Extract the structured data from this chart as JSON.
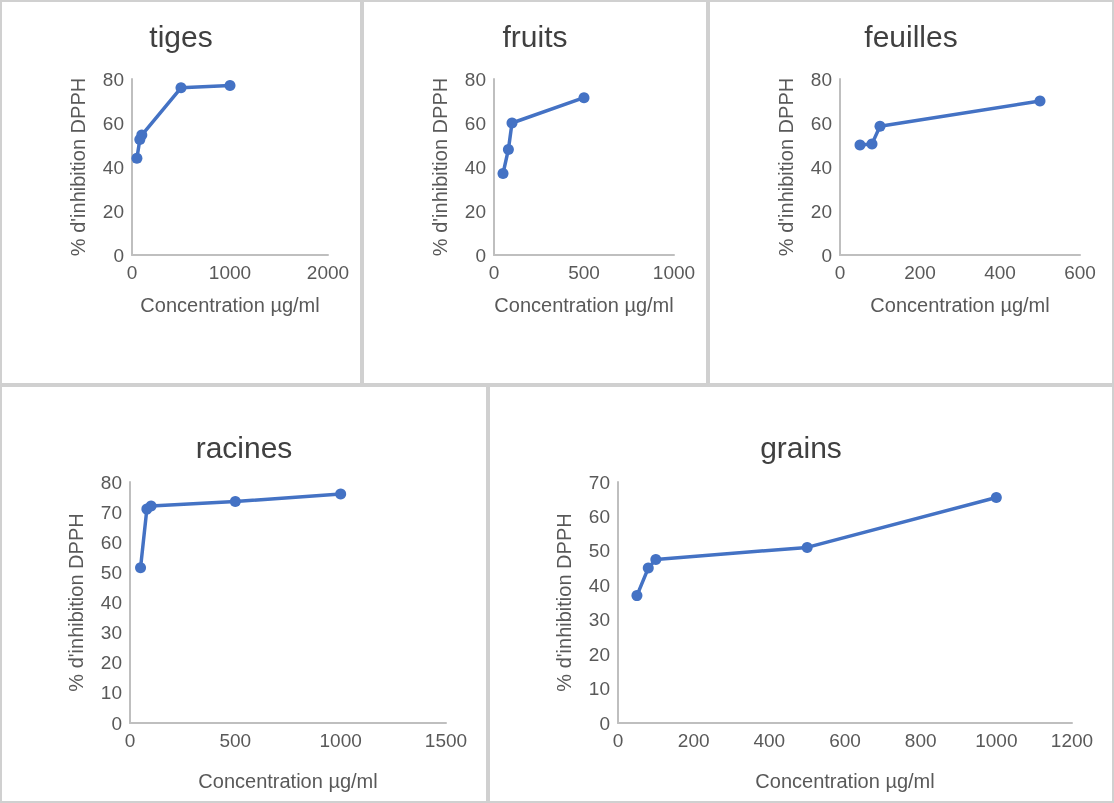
{
  "chart_data": [
    {
      "type": "line",
      "title": "tiges",
      "xlabel": "Concentration µg/ml",
      "ylabel": "% d'inhibition DPPH",
      "x": [
        50,
        80,
        100,
        500,
        1000
      ],
      "values": [
        44,
        52.5,
        54.5,
        76,
        77
      ],
      "color": "#4472c4",
      "marker": "circle",
      "xlim": [
        0,
        2000
      ],
      "xticks": [
        0,
        1000,
        2000
      ],
      "ylim": [
        0,
        80
      ],
      "yticks": [
        0,
        20,
        40,
        60,
        80
      ]
    },
    {
      "type": "line",
      "title": "fruits",
      "xlabel": "Concentration µg/ml",
      "ylabel": "% d'inhibition DPPH",
      "x": [
        50,
        80,
        100,
        500
      ],
      "values": [
        37,
        48,
        60,
        71.5
      ],
      "color": "#4472c4",
      "marker": "circle",
      "xlim": [
        0,
        1000
      ],
      "xticks": [
        0,
        500,
        1000
      ],
      "ylim": [
        0,
        80
      ],
      "yticks": [
        0,
        20,
        40,
        60,
        80
      ]
    },
    {
      "type": "line",
      "title": "feuilles",
      "xlabel": "Concentration µg/ml",
      "ylabel": "% d'inhibition DPPH",
      "x": [
        50,
        80,
        100,
        500
      ],
      "values": [
        50,
        50.5,
        58.5,
        70
      ],
      "color": "#4472c4",
      "marker": "circle",
      "xlim": [
        0,
        600
      ],
      "xticks": [
        0,
        200,
        400,
        600
      ],
      "ylim": [
        0,
        80
      ],
      "yticks": [
        0,
        20,
        40,
        60,
        80
      ]
    },
    {
      "type": "line",
      "title": "racines",
      "xlabel": "Concentration µg/ml",
      "ylabel": "% d'inhibition DPPH",
      "x": [
        50,
        80,
        100,
        500,
        1000
      ],
      "values": [
        51.5,
        71,
        72,
        73.5,
        76
      ],
      "color": "#4472c4",
      "marker": "circle",
      "xlim": [
        0,
        1500
      ],
      "xticks": [
        0,
        500,
        1000,
        1500
      ],
      "ylim": [
        0,
        80
      ],
      "yticks": [
        0,
        10,
        20,
        30,
        40,
        50,
        60,
        70,
        80
      ]
    },
    {
      "type": "line",
      "title": "grains",
      "xlabel": "Concentration µg/ml",
      "ylabel": "% d'inhibition DPPH",
      "x": [
        50,
        80,
        100,
        500,
        1000
      ],
      "values": [
        37,
        45,
        47.5,
        51,
        65.5
      ],
      "color": "#4472c4",
      "marker": "circle",
      "xlim": [
        0,
        1200
      ],
      "xticks": [
        0,
        200,
        400,
        600,
        800,
        1000,
        1200
      ],
      "ylim": [
        0,
        70
      ],
      "yticks": [
        0,
        10,
        20,
        30,
        40,
        50,
        60,
        70
      ]
    }
  ]
}
